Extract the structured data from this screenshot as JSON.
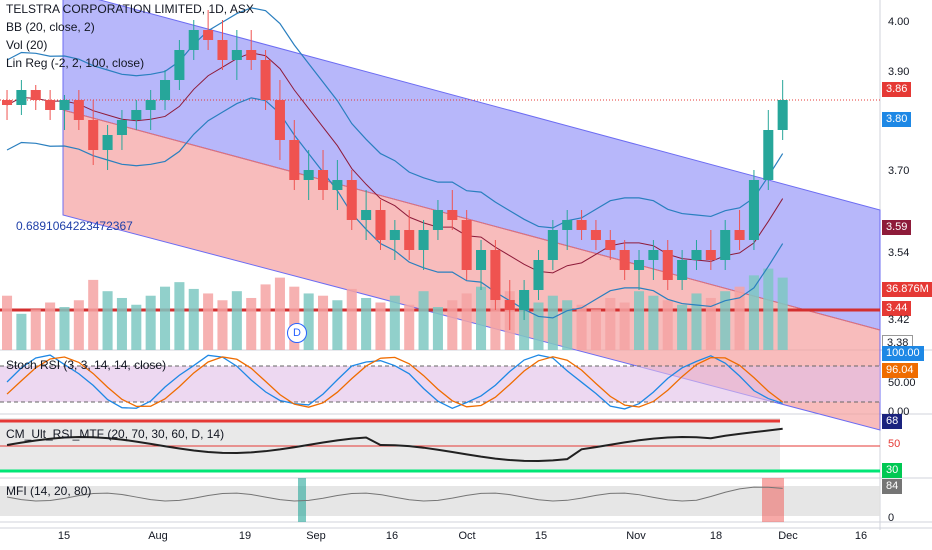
{
  "header": {
    "title": "TELSTRA CORPORATION LIMITED, 1D, ASX",
    "indicators": [
      "BB (20, close, 2)",
      "Vol (20)",
      "Lin Reg (-2, 2, 100, close)"
    ],
    "linreg_value": "0.6891064223472367"
  },
  "price_axis": {
    "ticks": [
      "4.00",
      "3.90",
      "3.70",
      "3.59",
      "3.54",
      "3.42"
    ],
    "badges": [
      {
        "label": "3.86",
        "color": "#e53935",
        "text_color": "#ffffff"
      },
      {
        "label": "3.80",
        "color": "#1e88e5",
        "text_color": "#ffffff"
      },
      {
        "label": "3.59",
        "color": "#8e1b3a",
        "text_color": "#ffffff"
      },
      {
        "label": "36.876M",
        "color": "#e53935",
        "text_color": "#ffffff"
      },
      {
        "label": "3.44",
        "color": "#e53935",
        "text_color": "#ffffff"
      },
      {
        "label": "3.38",
        "color": "#ffffff",
        "text_color": "#131722"
      }
    ]
  },
  "x_axis": {
    "ticks": [
      "15",
      "Aug",
      "19",
      "Sep",
      "16",
      "Oct",
      "15",
      "Nov",
      "18",
      "Dec",
      "16"
    ]
  },
  "panels": {
    "stoch_rsi": {
      "label": "Stoch RSI (3, 3, 14, 14, close)",
      "ticks": [
        "100.00",
        "96.04",
        "50.00",
        "0.00"
      ]
    },
    "cm_ult_rsi": {
      "label": "CM_Ult_RSI_MTF (20, 70, 30, 60, D, 14)",
      "ticks": [
        "68",
        "50",
        "30"
      ]
    },
    "mfi": {
      "label": "MFI (14, 20, 80)",
      "ticks": [
        "84",
        "0"
      ]
    }
  },
  "dividend_marker": "D",
  "colors": {
    "up": "#26a69a",
    "down": "#ef5350",
    "bb": "#2a7fbf",
    "channel_upper": "#6c6cf2",
    "channel_lower": "#f08080",
    "hline": "#d32f2f"
  },
  "chart_data": {
    "type": "candlestick",
    "symbol": "TELSTRA CORPORATION LIMITED, 1D, ASX",
    "ylim": [
      3.36,
      4.06
    ],
    "x_labels": [
      "15",
      "Aug",
      "19",
      "Sep",
      "16",
      "Oct",
      "15",
      "Nov",
      "18",
      "Dec",
      "16"
    ],
    "last_close": 3.86,
    "horizontal_line": 3.44,
    "candles": [
      [
        3.86,
        3.88,
        3.82,
        3.85
      ],
      [
        3.85,
        3.9,
        3.83,
        3.88
      ],
      [
        3.88,
        3.89,
        3.84,
        3.86
      ],
      [
        3.86,
        3.88,
        3.82,
        3.84
      ],
      [
        3.84,
        3.87,
        3.8,
        3.86
      ],
      [
        3.86,
        3.88,
        3.8,
        3.82
      ],
      [
        3.82,
        3.86,
        3.73,
        3.76
      ],
      [
        3.76,
        3.81,
        3.72,
        3.79
      ],
      [
        3.79,
        3.84,
        3.76,
        3.82
      ],
      [
        3.82,
        3.86,
        3.8,
        3.84
      ],
      [
        3.84,
        3.88,
        3.8,
        3.86
      ],
      [
        3.86,
        3.92,
        3.84,
        3.9
      ],
      [
        3.9,
        3.98,
        3.88,
        3.96
      ],
      [
        3.96,
        4.02,
        3.94,
        4.0
      ],
      [
        4.0,
        4.04,
        3.96,
        3.98
      ],
      [
        3.98,
        4.02,
        3.92,
        3.94
      ],
      [
        3.94,
        4.0,
        3.9,
        3.96
      ],
      [
        3.96,
        4.0,
        3.92,
        3.94
      ],
      [
        3.94,
        3.96,
        3.84,
        3.86
      ],
      [
        3.86,
        3.9,
        3.74,
        3.78
      ],
      [
        3.78,
        3.82,
        3.68,
        3.7
      ],
      [
        3.7,
        3.76,
        3.66,
        3.72
      ],
      [
        3.72,
        3.76,
        3.66,
        3.68
      ],
      [
        3.68,
        3.74,
        3.64,
        3.7
      ],
      [
        3.7,
        3.72,
        3.6,
        3.62
      ],
      [
        3.62,
        3.68,
        3.58,
        3.64
      ],
      [
        3.64,
        3.66,
        3.56,
        3.58
      ],
      [
        3.58,
        3.62,
        3.54,
        3.6
      ],
      [
        3.6,
        3.64,
        3.54,
        3.56
      ],
      [
        3.56,
        3.62,
        3.52,
        3.6
      ],
      [
        3.6,
        3.66,
        3.58,
        3.64
      ],
      [
        3.64,
        3.68,
        3.6,
        3.62
      ],
      [
        3.62,
        3.64,
        3.5,
        3.52
      ],
      [
        3.52,
        3.58,
        3.48,
        3.56
      ],
      [
        3.56,
        3.58,
        3.44,
        3.46
      ],
      [
        3.46,
        3.5,
        3.4,
        3.44
      ],
      [
        3.44,
        3.5,
        3.42,
        3.48
      ],
      [
        3.48,
        3.56,
        3.46,
        3.54
      ],
      [
        3.54,
        3.62,
        3.52,
        3.6
      ],
      [
        3.6,
        3.64,
        3.56,
        3.62
      ],
      [
        3.62,
        3.64,
        3.58,
        3.6
      ],
      [
        3.6,
        3.62,
        3.56,
        3.58
      ],
      [
        3.58,
        3.6,
        3.54,
        3.56
      ],
      [
        3.56,
        3.58,
        3.5,
        3.52
      ],
      [
        3.52,
        3.56,
        3.48,
        3.54
      ],
      [
        3.54,
        3.58,
        3.5,
        3.56
      ],
      [
        3.56,
        3.58,
        3.48,
        3.5
      ],
      [
        3.5,
        3.56,
        3.48,
        3.54
      ],
      [
        3.54,
        3.58,
        3.52,
        3.56
      ],
      [
        3.56,
        3.6,
        3.52,
        3.54
      ],
      [
        3.54,
        3.62,
        3.52,
        3.6
      ],
      [
        3.6,
        3.64,
        3.56,
        3.58
      ],
      [
        3.58,
        3.72,
        3.56,
        3.7
      ],
      [
        3.7,
        3.84,
        3.68,
        3.8
      ],
      [
        3.8,
        3.9,
        3.78,
        3.86
      ]
    ],
    "volumes": [
      2.4,
      1.6,
      1.8,
      2.1,
      1.9,
      2.2,
      3.1,
      2.6,
      2.3,
      2.0,
      2.4,
      2.8,
      3.0,
      2.7,
      2.5,
      2.2,
      2.6,
      2.3,
      2.9,
      3.2,
      2.8,
      2.5,
      2.4,
      2.2,
      2.7,
      2.3,
      2.1,
      2.4,
      2.0,
      2.6,
      1.9,
      2.2,
      2.5,
      2.8,
      3.0,
      2.6,
      2.3,
      2.1,
      2.4,
      2.2,
      2.0,
      1.8,
      2.3,
      2.1,
      2.6,
      2.4,
      2.2,
      2.0,
      2.5,
      2.3,
      2.6,
      2.8,
      3.3,
      3.6,
      3.2
    ]
  }
}
